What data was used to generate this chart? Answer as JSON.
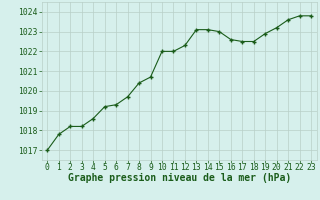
{
  "x": [
    0,
    1,
    2,
    3,
    4,
    5,
    6,
    7,
    8,
    9,
    10,
    11,
    12,
    13,
    14,
    15,
    16,
    17,
    18,
    19,
    20,
    21,
    22,
    23
  ],
  "y": [
    1017.0,
    1017.8,
    1018.2,
    1018.2,
    1018.6,
    1019.2,
    1019.3,
    1019.7,
    1020.4,
    1020.7,
    1022.0,
    1022.0,
    1022.3,
    1023.1,
    1023.1,
    1023.0,
    1022.6,
    1022.5,
    1022.5,
    1022.9,
    1023.2,
    1023.6,
    1023.8,
    1023.8
  ],
  "line_color": "#1a5c1a",
  "marker_color": "#1a5c1a",
  "background_color": "#d6f0ec",
  "grid_color": "#b8cfc8",
  "xlabel": "Graphe pression niveau de la mer (hPa)",
  "xlabel_color": "#1a5c1a",
  "ylim": [
    1016.5,
    1024.5
  ],
  "xlim": [
    -0.5,
    23.5
  ],
  "yticks": [
    1017,
    1018,
    1019,
    1020,
    1021,
    1022,
    1023,
    1024
  ],
  "xticks": [
    0,
    1,
    2,
    3,
    4,
    5,
    6,
    7,
    8,
    9,
    10,
    11,
    12,
    13,
    14,
    15,
    16,
    17,
    18,
    19,
    20,
    21,
    22,
    23
  ],
  "tick_color": "#1a5c1a",
  "tick_fontsize": 5.8,
  "xlabel_fontsize": 7.0,
  "line_width": 0.8,
  "marker_size": 2.5
}
